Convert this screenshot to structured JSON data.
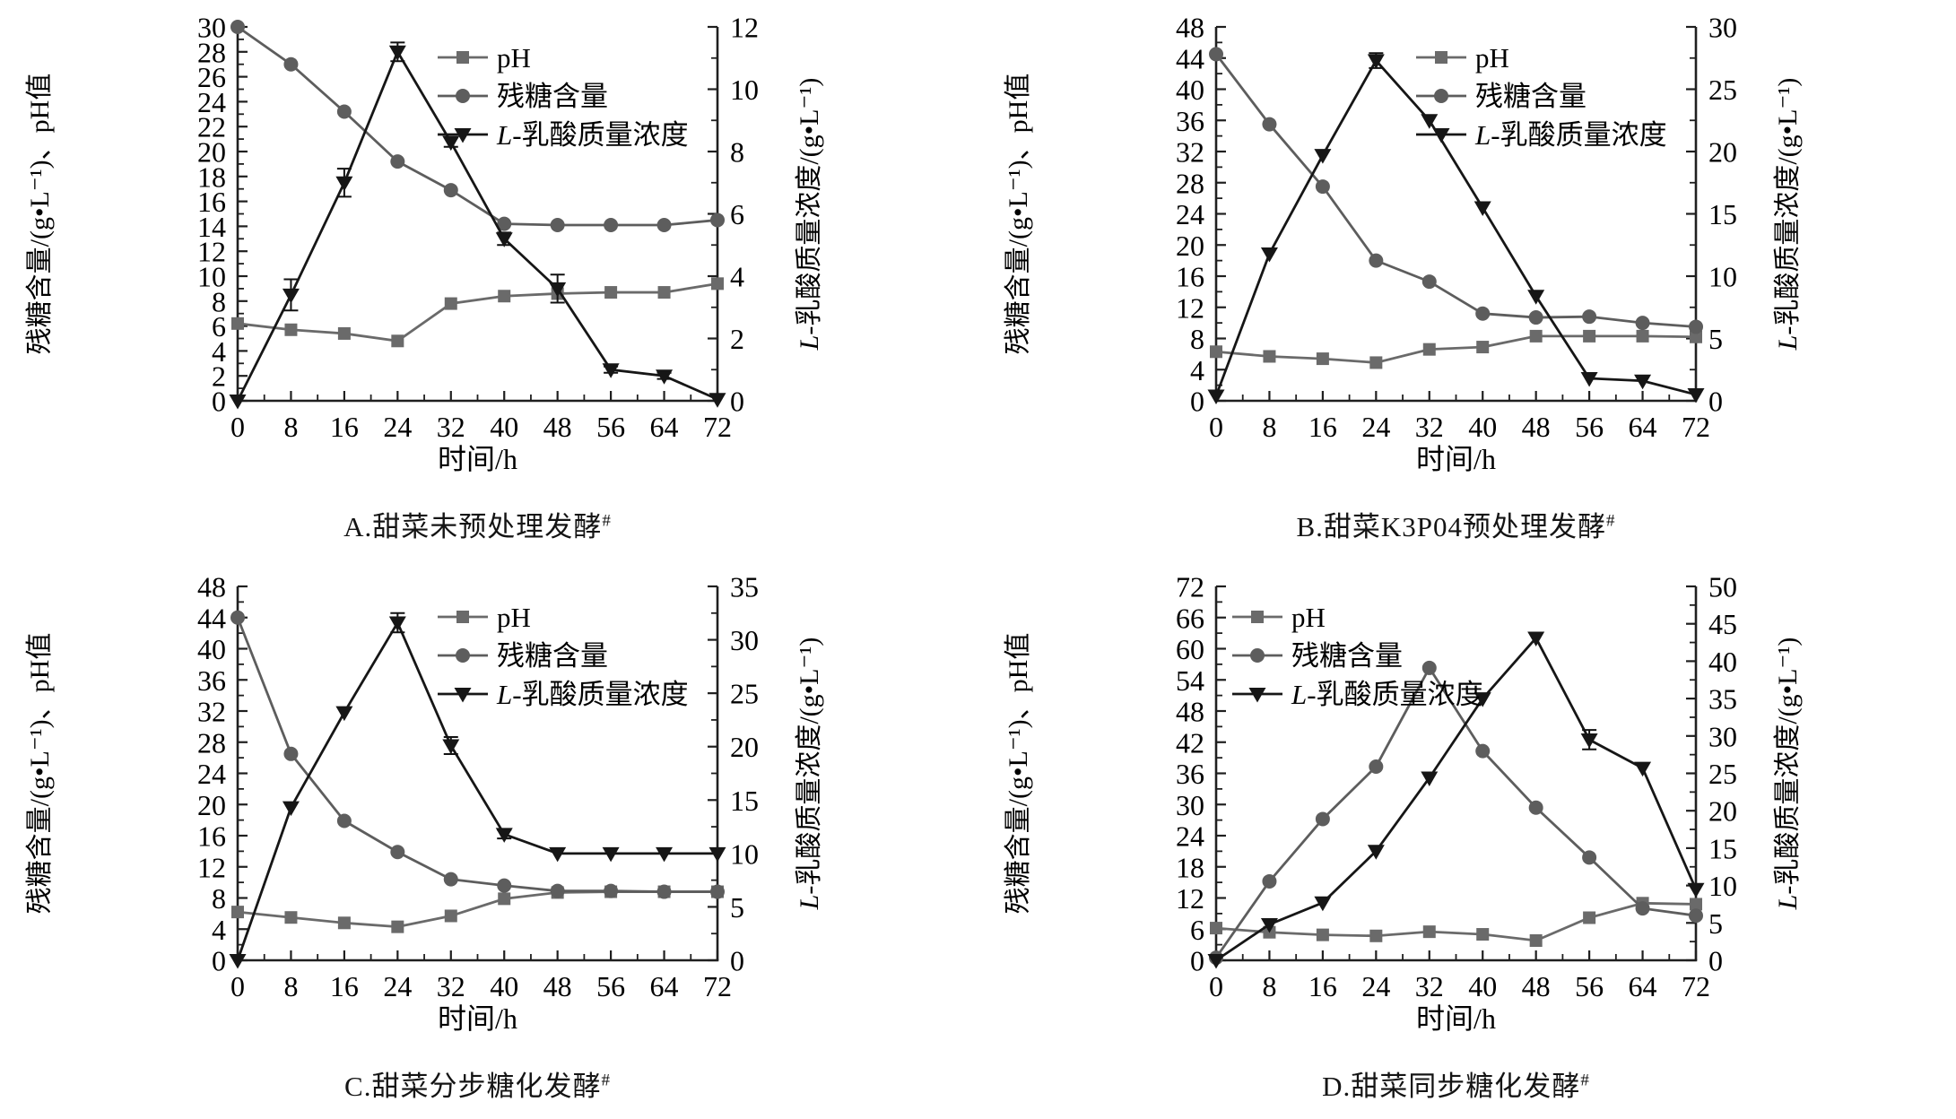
{
  "figure": {
    "background": "#ffffff",
    "x": {
      "label": "时间/h",
      "values": [
        0,
        8,
        16,
        24,
        32,
        40,
        48,
        56,
        64,
        72
      ],
      "min": 0,
      "max": 72,
      "tick_step": 8,
      "minor_step": 4
    },
    "colors": {
      "axis": "#1f1f1f",
      "text": "#000000",
      "ph": "#6a6a6a",
      "sugar": "#5d5d5d",
      "lactic": "#161616"
    },
    "legend_labels": [
      "pH",
      "残糖含量",
      "L-乳酸质量浓度"
    ]
  },
  "chart_data": [
    {
      "id": "A",
      "type": "line",
      "caption": "A.甜菜未预处理发酵",
      "caption_sup": "#",
      "x_label": "时间/h",
      "legend_pos": "top-right",
      "left_axis": {
        "label": "残糖含量/(g•L⁻¹)、pH值",
        "min": 0,
        "max": 30,
        "step": 2
      },
      "right_axis": {
        "label": "L-乳酸质量浓度/(g•L⁻¹)",
        "min": 0,
        "max": 12,
        "step": 2
      },
      "x": [
        0,
        8,
        16,
        24,
        32,
        40,
        48,
        56,
        64,
        72
      ],
      "series": [
        {
          "key": "ph",
          "name": "pH",
          "axis": "left",
          "marker": "square",
          "color": "#6a6a6a",
          "values": [
            6.2,
            5.7,
            5.4,
            4.8,
            7.8,
            8.4,
            8.6,
            8.7,
            8.7,
            9.4
          ]
        },
        {
          "key": "sugar",
          "name": "残糖含量",
          "axis": "left",
          "marker": "circle",
          "color": "#5d5d5d",
          "values": [
            30,
            27,
            23.2,
            19.2,
            16.9,
            14.2,
            14.1,
            14.1,
            14.1,
            14.5
          ]
        },
        {
          "key": "lactic",
          "name": "L-乳酸质量浓度",
          "axis": "right",
          "marker": "triangle-down",
          "color": "#161616",
          "values": [
            0,
            3.4,
            7.0,
            11.2,
            8.3,
            5.2,
            3.6,
            1.0,
            0.8,
            0.05
          ],
          "err": [
            0,
            0.5,
            0.45,
            0.3,
            0.15,
            0.2,
            0.45,
            0.1,
            0.1,
            0
          ]
        }
      ]
    },
    {
      "id": "B",
      "type": "line",
      "caption": "B.甜菜K3P04预处理发酵",
      "caption_sup": "#",
      "x_label": "时间/h",
      "legend_pos": "top-right",
      "left_axis": {
        "label": "残糖含量/(g•L⁻¹)、pH值",
        "min": 0,
        "max": 48,
        "step": 4
      },
      "right_axis": {
        "label": "L-乳酸质量浓度/(g•L⁻¹)",
        "min": 0,
        "max": 30,
        "step": 5
      },
      "x": [
        0,
        8,
        16,
        24,
        32,
        40,
        48,
        56,
        64,
        72
      ],
      "series": [
        {
          "key": "ph",
          "name": "pH",
          "axis": "left",
          "marker": "square",
          "color": "#6a6a6a",
          "values": [
            6.3,
            5.7,
            5.4,
            4.9,
            6.6,
            6.9,
            8.3,
            8.3,
            8.3,
            8.2
          ]
        },
        {
          "key": "sugar",
          "name": "残糖含量",
          "axis": "left",
          "marker": "circle",
          "color": "#5d5d5d",
          "values": [
            44.5,
            35.5,
            27.5,
            18.0,
            15.3,
            11.2,
            10.7,
            10.8,
            10.0,
            9.5
          ]
        },
        {
          "key": "lactic",
          "name": "L-乳酸质量浓度",
          "axis": "right",
          "marker": "triangle-down",
          "color": "#161616",
          "values": [
            0.4,
            11.8,
            19.7,
            27.3,
            22.5,
            15.5,
            8.4,
            1.8,
            1.6,
            0.5
          ],
          "err": [
            0,
            0,
            0,
            0.6,
            0,
            0,
            0,
            0,
            0,
            0
          ]
        }
      ]
    },
    {
      "id": "C",
      "type": "line",
      "caption": "C.甜菜分步糖化发酵",
      "caption_sup": "#",
      "x_label": "时间/h",
      "legend_pos": "top-right",
      "left_axis": {
        "label": "残糖含量/(g•L⁻¹)、pH值",
        "min": 0,
        "max": 48,
        "step": 4
      },
      "right_axis": {
        "label": "L-乳酸质量浓度/(g•L⁻¹)",
        "min": 0,
        "max": 35,
        "step": 5
      },
      "x": [
        0,
        8,
        16,
        24,
        32,
        40,
        48,
        56,
        64,
        72
      ],
      "series": [
        {
          "key": "ph",
          "name": "pH",
          "axis": "left",
          "marker": "square",
          "color": "#6a6a6a",
          "values": [
            6.2,
            5.5,
            4.8,
            4.3,
            5.7,
            7.9,
            8.7,
            8.8,
            8.8,
            8.8
          ]
        },
        {
          "key": "sugar",
          "name": "残糖含量",
          "axis": "left",
          "marker": "circle",
          "color": "#5d5d5d",
          "values": [
            44,
            26.5,
            17.9,
            13.9,
            10.4,
            9.6,
            8.9,
            8.9,
            8.8,
            8.8
          ]
        },
        {
          "key": "lactic",
          "name": "L-乳酸质量浓度",
          "axis": "right",
          "marker": "triangle-down",
          "color": "#161616",
          "values": [
            0,
            14.3,
            23.2,
            31.6,
            20.1,
            11.8,
            10,
            10,
            10,
            10
          ],
          "err": [
            0,
            0,
            0,
            0.9,
            0.8,
            0.4,
            0,
            0,
            0,
            0
          ]
        }
      ]
    },
    {
      "id": "D",
      "type": "line",
      "caption": "D.甜菜同步糖化发酵",
      "caption_sup": "#",
      "x_label": "时间/h",
      "legend_pos": "top-left",
      "left_axis": {
        "label": "残糖含量/(g•L⁻¹)、pH值",
        "min": 0,
        "max": 72,
        "step": 6
      },
      "right_axis": {
        "label": "L-乳酸质量浓度/(g•L⁻¹)",
        "min": 0,
        "max": 50,
        "step": 5
      },
      "x": [
        0,
        8,
        16,
        24,
        32,
        40,
        48,
        56,
        64,
        72
      ],
      "series": [
        {
          "key": "ph",
          "name": "pH",
          "axis": "left",
          "marker": "square",
          "color": "#6a6a6a",
          "values": [
            6.2,
            5.4,
            4.9,
            4.7,
            5.5,
            5.0,
            3.8,
            8.2,
            11.0,
            10.8
          ]
        },
        {
          "key": "sugar",
          "name": "残糖含量",
          "axis": "left",
          "marker": "circle",
          "color": "#5d5d5d",
          "values": [
            0.5,
            15.2,
            27.2,
            37.3,
            56.3,
            40.3,
            29.4,
            19.8,
            10.0,
            8.6
          ]
        },
        {
          "key": "lactic",
          "name": "L-乳酸质量浓度",
          "axis": "right",
          "marker": "triangle-down",
          "color": "#161616",
          "values": [
            0,
            4.8,
            7.7,
            14.6,
            24.4,
            35.0,
            43.1,
            29.5,
            25.7,
            9.5
          ],
          "err": [
            0,
            0,
            0,
            0,
            0,
            0,
            0,
            1.3,
            0,
            0
          ]
        }
      ]
    }
  ]
}
